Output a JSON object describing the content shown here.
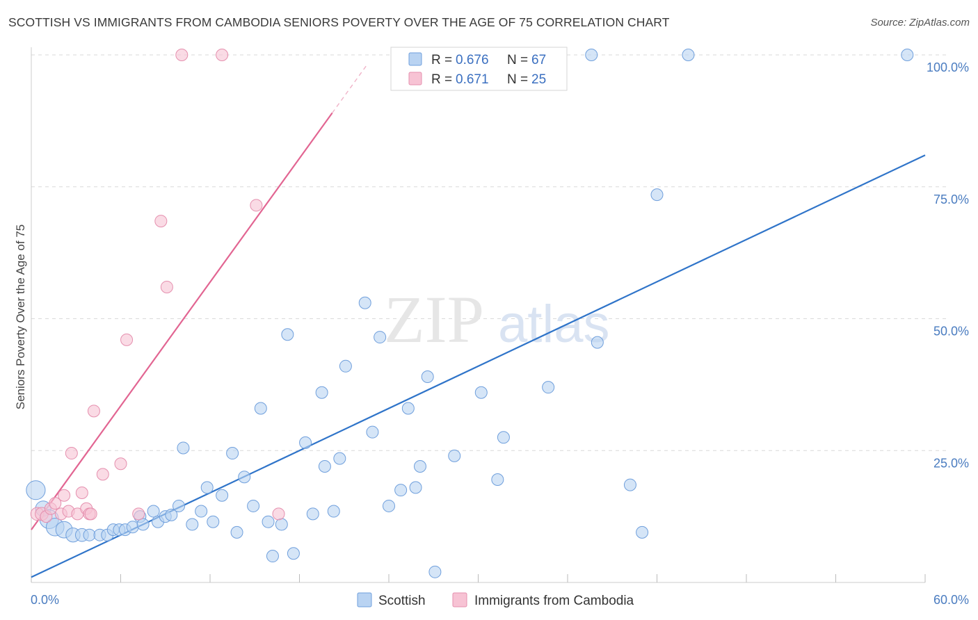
{
  "title": "SCOTTISH VS IMMIGRANTS FROM CAMBODIA SENIORS POVERTY OVER THE AGE OF 75 CORRELATION CHART",
  "source": "Source: ZipAtlas.com",
  "watermark": {
    "zip": "ZIP",
    "atlas": "atlas"
  },
  "colors": {
    "blue": "#2f74c9",
    "blue_fill": "#b9d3f2",
    "pink": "#e26592",
    "pink_fill": "#f7c3d4",
    "grid": "#d9d9d9"
  },
  "chart_data": {
    "type": "scatter",
    "title": "SCOTTISH VS IMMIGRANTS FROM CAMBODIA SENIORS POVERTY OVER THE AGE OF 75 CORRELATION CHART",
    "xlabel": "",
    "ylabel": "Seniors Poverty Over the Age of 75",
    "xlim": [
      0,
      60
    ],
    "ylim": [
      0,
      100
    ],
    "x_tick_labels": [
      "0.0%",
      "60.0%"
    ],
    "y_tick_labels": [
      "25.0%",
      "50.0%",
      "75.0%",
      "100.0%"
    ],
    "y_ticks": [
      25,
      50,
      75,
      100
    ],
    "grid": true,
    "legend_position": "top-center",
    "stats": [
      {
        "r_label": "R =",
        "r_value": "0.676",
        "n_label": "N =",
        "n_value": "67"
      },
      {
        "r_label": "R =",
        "r_value": "0.671",
        "n_label": "N =",
        "n_value": "25"
      }
    ],
    "series": [
      {
        "name": "Scottish",
        "color": "#2f74c9",
        "trend": {
          "x0": 0,
          "y0": 1.0,
          "x1": 60,
          "y1": 81.0
        },
        "points": [
          [
            0.3,
            17.5,
            1.6
          ],
          [
            0.8,
            14,
            1.3
          ],
          [
            1.2,
            12,
            1.6
          ],
          [
            1.6,
            10.5,
            1.5
          ],
          [
            2.2,
            10,
            1.4
          ],
          [
            2.8,
            9,
            1.2
          ],
          [
            3.4,
            9,
            1.1
          ],
          [
            3.9,
            9,
            1
          ],
          [
            4.6,
            9,
            1
          ],
          [
            5.1,
            9,
            1
          ],
          [
            5.5,
            10,
            1
          ],
          [
            5.9,
            10,
            1
          ],
          [
            6.3,
            10,
            1
          ],
          [
            6.8,
            10.5,
            1
          ],
          [
            7.3,
            12.5,
            1
          ],
          [
            7.5,
            11,
            1
          ],
          [
            8.2,
            13.5,
            1
          ],
          [
            8.5,
            11.5,
            1
          ],
          [
            9.0,
            12.5,
            1
          ],
          [
            9.4,
            12.8,
            1
          ],
          [
            9.9,
            14.5,
            1
          ],
          [
            10.2,
            25.5,
            1
          ],
          [
            10.8,
            11,
            1
          ],
          [
            11.4,
            13.5,
            1
          ],
          [
            11.8,
            18,
            1
          ],
          [
            12.2,
            11.5,
            1
          ],
          [
            12.8,
            16.5,
            1
          ],
          [
            13.5,
            24.5,
            1
          ],
          [
            13.8,
            9.5,
            1
          ],
          [
            14.3,
            20,
            1
          ],
          [
            14.9,
            14.5,
            1
          ],
          [
            15.4,
            33,
            1
          ],
          [
            15.9,
            11.5,
            1
          ],
          [
            16.2,
            5,
            1
          ],
          [
            16.8,
            11,
            1
          ],
          [
            17.2,
            47,
            1
          ],
          [
            17.6,
            5.5,
            1
          ],
          [
            18.4,
            26.5,
            1
          ],
          [
            18.9,
            13,
            1
          ],
          [
            19.5,
            36,
            1
          ],
          [
            19.7,
            22,
            1
          ],
          [
            20.3,
            13.5,
            1
          ],
          [
            20.7,
            23.5,
            1
          ],
          [
            21.1,
            41,
            1
          ],
          [
            22.4,
            53,
            1
          ],
          [
            22.9,
            28.5,
            1
          ],
          [
            23.4,
            46.5,
            1
          ],
          [
            24.0,
            14.5,
            1
          ],
          [
            24.8,
            17.5,
            1
          ],
          [
            25.3,
            33,
            1
          ],
          [
            25.8,
            18,
            1
          ],
          [
            26.1,
            22,
            1
          ],
          [
            26.6,
            39,
            1
          ],
          [
            27.1,
            2,
            1
          ],
          [
            28.4,
            24,
            1
          ],
          [
            30.2,
            36,
            1
          ],
          [
            31.3,
            19.5,
            1
          ],
          [
            31.7,
            27.5,
            1
          ],
          [
            34.7,
            37,
            1
          ],
          [
            37.6,
            100,
            1
          ],
          [
            38.0,
            45.5,
            1
          ],
          [
            40.2,
            18.5,
            1
          ],
          [
            41.0,
            9.5,
            1
          ],
          [
            42.0,
            73.5,
            1
          ],
          [
            44.1,
            100,
            1
          ],
          [
            58.8,
            100,
            1
          ],
          [
            30.8,
            100,
            1
          ]
        ]
      },
      {
        "name": "Immigrants from Cambodia",
        "color": "#e26592",
        "trend": {
          "x0": 0,
          "y0": 10.0,
          "x1": 20.2,
          "y1": 89.0
        },
        "trend_dashed": {
          "x0": 20.2,
          "y0": 89.0,
          "x1": 22.5,
          "y1": 98.0
        },
        "points": [
          [
            0.4,
            13,
            1.1
          ],
          [
            0.7,
            13,
            1.1
          ],
          [
            1.0,
            12.5,
            1
          ],
          [
            1.3,
            14,
            1
          ],
          [
            1.6,
            15,
            1
          ],
          [
            2.0,
            13,
            1
          ],
          [
            2.2,
            16.5,
            1
          ],
          [
            2.5,
            13.5,
            1
          ],
          [
            2.7,
            24.5,
            1
          ],
          [
            3.1,
            13,
            1
          ],
          [
            3.4,
            17,
            1
          ],
          [
            3.7,
            14,
            1
          ],
          [
            3.9,
            13,
            1
          ],
          [
            4.0,
            13,
            1
          ],
          [
            4.2,
            32.5,
            1
          ],
          [
            4.8,
            20.5,
            1
          ],
          [
            6.0,
            22.5,
            1
          ],
          [
            6.4,
            46,
            1
          ],
          [
            7.2,
            13,
            1
          ],
          [
            8.7,
            68.5,
            1
          ],
          [
            9.1,
            56,
            1
          ],
          [
            10.1,
            100,
            1
          ],
          [
            12.8,
            100,
            1
          ],
          [
            15.1,
            71.5,
            1
          ],
          [
            16.6,
            13,
            1
          ]
        ]
      }
    ]
  }
}
